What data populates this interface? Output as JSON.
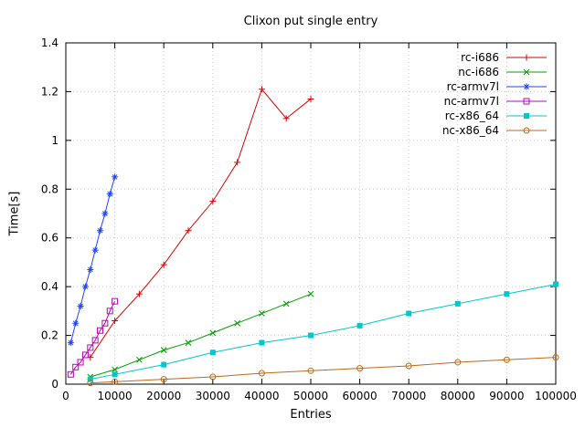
{
  "chart_data": {
    "type": "line",
    "title": "Clixon put single entry",
    "xlabel": "Entries",
    "ylabel": "Time[s]",
    "xlim": [
      0,
      100000
    ],
    "ylim": [
      0,
      1.4
    ],
    "xticks": [
      0,
      10000,
      20000,
      30000,
      40000,
      50000,
      60000,
      70000,
      80000,
      90000,
      100000
    ],
    "xtick_labels": [
      "0",
      "10000",
      "20000",
      "30000",
      "40000",
      "50000",
      "60000",
      "70000",
      "80000",
      "90000",
      "100000"
    ],
    "yticks": [
      0,
      0.2,
      0.4,
      0.6,
      0.8,
      1.0,
      1.2,
      1.4
    ],
    "ytick_labels": [
      "0",
      "0.2",
      "0.4",
      "0.6",
      "0.8",
      "1",
      "1.2",
      "1.4"
    ],
    "grid": true,
    "grid_color": "#c8c8c8",
    "border_color": "#000000",
    "legend_position": "top-right",
    "series": [
      {
        "name": "rc-i686",
        "color": "#dd0000",
        "marker": "plus",
        "x": [
          5000,
          10000,
          15000,
          20000,
          25000,
          30000,
          35000,
          40000,
          45000,
          50000
        ],
        "y": [
          0.11,
          0.26,
          0.37,
          0.49,
          0.63,
          0.75,
          0.91,
          1.21,
          1.09,
          1.17
        ]
      },
      {
        "name": "nc-i686",
        "color": "#00a000",
        "marker": "x",
        "x": [
          5000,
          10000,
          15000,
          20000,
          25000,
          30000,
          35000,
          40000,
          45000,
          50000
        ],
        "y": [
          0.03,
          0.06,
          0.1,
          0.14,
          0.17,
          0.21,
          0.25,
          0.29,
          0.33,
          0.37
        ]
      },
      {
        "name": "rc-armv7l",
        "color": "#2244ff",
        "marker": "asterisk",
        "x": [
          1000,
          2000,
          3000,
          4000,
          5000,
          6000,
          7000,
          8000,
          9000,
          10000
        ],
        "y": [
          0.17,
          0.25,
          0.32,
          0.4,
          0.47,
          0.55,
          0.63,
          0.7,
          0.78,
          0.85
        ]
      },
      {
        "name": "nc-armv7l",
        "color": "#c000c0",
        "marker": "square-open",
        "x": [
          1000,
          2000,
          3000,
          4000,
          5000,
          6000,
          7000,
          8000,
          9000,
          10000
        ],
        "y": [
          0.04,
          0.07,
          0.09,
          0.12,
          0.15,
          0.18,
          0.22,
          0.25,
          0.3,
          0.34
        ]
      },
      {
        "name": "rc-x86_64",
        "color": "#00c8c8",
        "marker": "square-filled",
        "x": [
          5000,
          10000,
          20000,
          30000,
          40000,
          50000,
          60000,
          70000,
          80000,
          90000,
          100000
        ],
        "y": [
          0.02,
          0.04,
          0.08,
          0.13,
          0.17,
          0.2,
          0.24,
          0.29,
          0.33,
          0.37,
          0.41
        ]
      },
      {
        "name": "nc-x86_64",
        "color": "#c06818",
        "marker": "circle-open",
        "x": [
          5000,
          10000,
          20000,
          30000,
          40000,
          50000,
          60000,
          70000,
          80000,
          90000,
          100000
        ],
        "y": [
          0.005,
          0.01,
          0.02,
          0.03,
          0.045,
          0.055,
          0.065,
          0.075,
          0.09,
          0.1,
          0.11
        ]
      }
    ]
  }
}
